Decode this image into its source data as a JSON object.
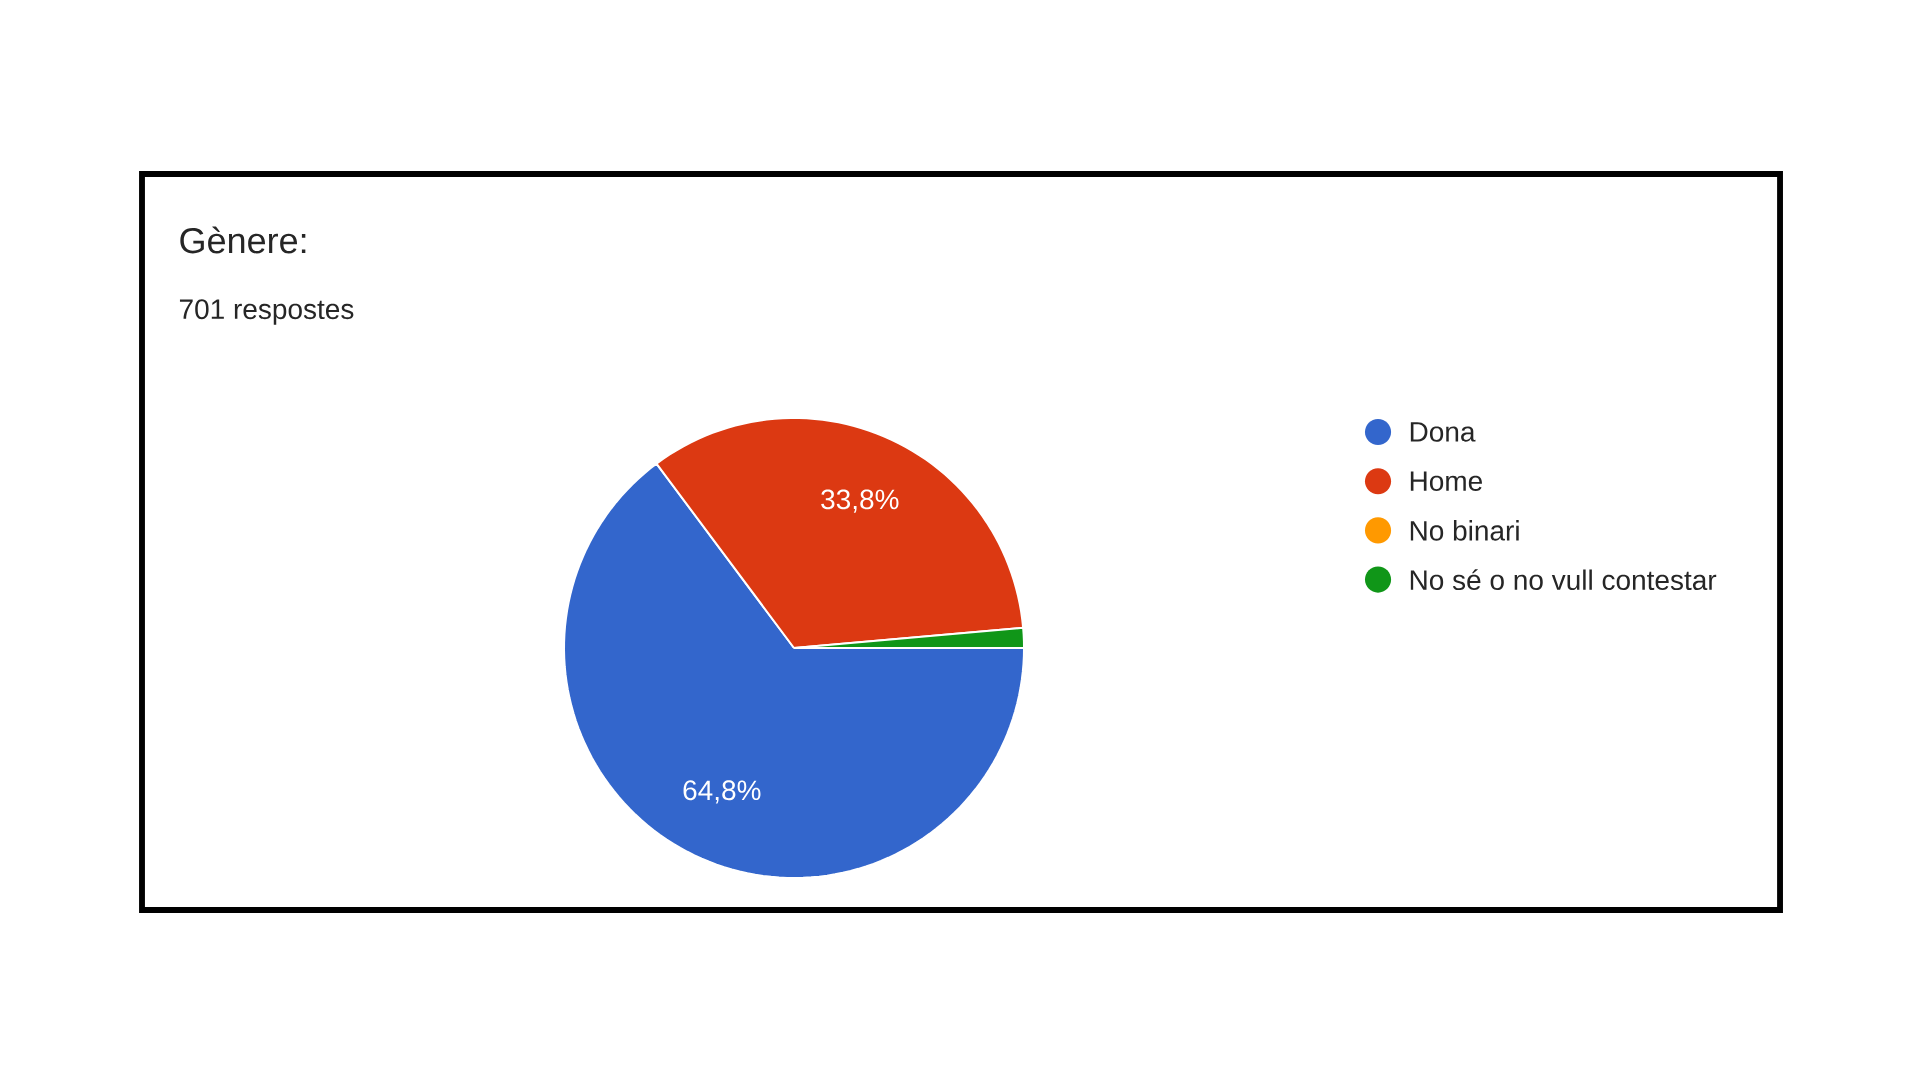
{
  "chart_data": {
    "type": "pie",
    "title": "Gènere:",
    "subtitle": "701 respostes",
    "categories": [
      "Dona",
      "Home",
      "No binari",
      "No sé o no vull contestar"
    ],
    "values": [
      64.8,
      33.8,
      0,
      1.4
    ],
    "colors": [
      "#3366cc",
      "#dc3912",
      "#ff9900",
      "#109618"
    ],
    "value_labels": [
      "64,8%",
      "33,8%",
      null,
      null
    ],
    "legend": "right"
  }
}
